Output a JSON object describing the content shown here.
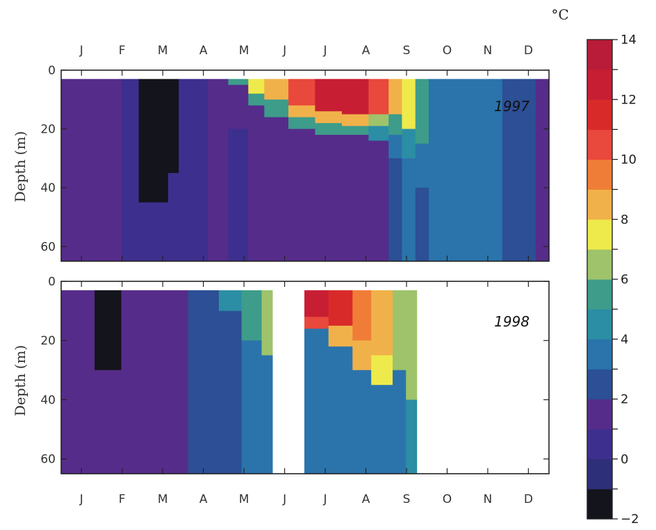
{
  "chart_data": {
    "type": "heatmap",
    "months": [
      "J",
      "F",
      "M",
      "A",
      "M",
      "J",
      "J",
      "A",
      "S",
      "O",
      "N",
      "D"
    ],
    "ylabel": "Depth (m)",
    "y_ticks": [
      0,
      20,
      40,
      60
    ],
    "depth_range": [
      0,
      65
    ],
    "colorbar": {
      "unit": "°C",
      "range": [
        -2,
        14
      ],
      "tick_labels": [
        -2,
        0,
        2,
        4,
        6,
        8,
        10,
        12,
        14
      ],
      "colors": [
        "#14141c",
        "#2d2f78",
        "#3d2f8e",
        "#562c8a",
        "#2c4f95",
        "#2a74ab",
        "#2b8ea5",
        "#3d9c8a",
        "#9ec36b",
        "#eeea4c",
        "#f1b14a",
        "#ef7d37",
        "#e9483c",
        "#d92a2a",
        "#c81e34",
        "#b81c38"
      ]
    },
    "panels": [
      {
        "year_label": "1997",
        "columns": [
          {
            "day_start": 0,
            "day_end": 4,
            "profile": [
              [
                0,
                65,
                1.3
              ]
            ]
          },
          {
            "day_start": 4,
            "day_end": 8,
            "profile": [
              [
                0,
                65,
                1.1
              ]
            ]
          },
          {
            "day_start": 8,
            "day_end": 30,
            "profile": [
              [
                0,
                65,
                1.2
              ]
            ]
          },
          {
            "day_start": 30,
            "day_end": 45,
            "profile": [
              [
                0,
                65,
                1.0
              ]
            ]
          },
          {
            "day_start": 45,
            "day_end": 58,
            "profile": [
              [
                0,
                65,
                0.6
              ]
            ]
          },
          {
            "day_start": 58,
            "day_end": 80,
            "profile": [
              [
                0,
                45,
                -1.3
              ],
              [
                45,
                65,
                0.7
              ]
            ]
          },
          {
            "day_start": 80,
            "day_end": 88,
            "profile": [
              [
                0,
                35,
                -1.1
              ],
              [
                35,
                65,
                0.9
              ]
            ]
          },
          {
            "day_start": 88,
            "day_end": 92,
            "profile": [
              [
                0,
                65,
                0.7
              ]
            ]
          },
          {
            "day_start": 92,
            "day_end": 110,
            "profile": [
              [
                0,
                65,
                0.6
              ]
            ]
          },
          {
            "day_start": 110,
            "day_end": 125,
            "profile": [
              [
                0,
                65,
                1.2
              ]
            ]
          },
          {
            "day_start": 125,
            "day_end": 140,
            "profile": [
              [
                0,
                5,
                5.0
              ],
              [
                5,
                20,
                1.3
              ],
              [
                20,
                65,
                0.9
              ]
            ]
          },
          {
            "day_start": 140,
            "day_end": 152,
            "profile": [
              [
                0,
                8,
                7.0
              ],
              [
                8,
                12,
                5.0
              ],
              [
                12,
                24,
                1.3
              ],
              [
                24,
                65,
                1.0
              ]
            ]
          },
          {
            "day_start": 152,
            "day_end": 170,
            "profile": [
              [
                0,
                10,
                8.3
              ],
              [
                10,
                16,
                5.5
              ],
              [
                16,
                30,
                1.6
              ],
              [
                30,
                65,
                1.0
              ]
            ]
          },
          {
            "day_start": 170,
            "day_end": 190,
            "profile": [
              [
                0,
                12,
                10.0
              ],
              [
                12,
                16,
                8.2
              ],
              [
                16,
                20,
                5.0
              ],
              [
                20,
                65,
                1.3
              ]
            ]
          },
          {
            "day_start": 190,
            "day_end": 210,
            "profile": [
              [
                0,
                14,
                12.0
              ],
              [
                14,
                18,
                8.5
              ],
              [
                18,
                22,
                5.0
              ],
              [
                22,
                65,
                1.2
              ]
            ]
          },
          {
            "day_start": 210,
            "day_end": 230,
            "profile": [
              [
                0,
                15,
                12.8
              ],
              [
                15,
                19,
                8.5
              ],
              [
                19,
                22,
                5.0
              ],
              [
                22,
                65,
                1.3
              ]
            ]
          },
          {
            "day_start": 230,
            "day_end": 245,
            "profile": [
              [
                0,
                15,
                10.0
              ],
              [
                15,
                19,
                6.5
              ],
              [
                19,
                24,
                4.0
              ],
              [
                24,
                65,
                1.5
              ]
            ]
          },
          {
            "day_start": 245,
            "day_end": 255,
            "profile": [
              [
                0,
                15,
                8.5
              ],
              [
                15,
                22,
                5.0
              ],
              [
                22,
                30,
                3.5
              ],
              [
                30,
                65,
                2.5
              ]
            ]
          },
          {
            "day_start": 255,
            "day_end": 265,
            "profile": [
              [
                0,
                20,
                7.2
              ],
              [
                20,
                30,
                4.0
              ],
              [
                30,
                65,
                3.0
              ]
            ]
          },
          {
            "day_start": 265,
            "day_end": 275,
            "profile": [
              [
                0,
                25,
                5.5
              ],
              [
                25,
                40,
                3.8
              ],
              [
                40,
                65,
                2.8
              ]
            ]
          },
          {
            "day_start": 275,
            "day_end": 300,
            "profile": [
              [
                0,
                65,
                3.6
              ]
            ]
          },
          {
            "day_start": 300,
            "day_end": 330,
            "profile": [
              [
                0,
                65,
                3.4
              ]
            ]
          },
          {
            "day_start": 330,
            "day_end": 345,
            "profile": [
              [
                0,
                65,
                2.6
              ]
            ]
          },
          {
            "day_start": 345,
            "day_end": 355,
            "profile": [
              [
                0,
                65,
                2.0
              ]
            ]
          },
          {
            "day_start": 355,
            "day_end": 365,
            "profile": [
              [
                0,
                65,
                1.4
              ]
            ]
          }
        ]
      },
      {
        "year_label": "1998",
        "columns": [
          {
            "day_start": 0,
            "day_end": 12,
            "profile": [
              [
                0,
                65,
                1.4
              ]
            ]
          },
          {
            "day_start": 12,
            "day_end": 25,
            "profile": [
              [
                0,
                65,
                1.1
              ]
            ]
          },
          {
            "day_start": 25,
            "day_end": 45,
            "profile": [
              [
                0,
                30,
                -1.3
              ],
              [
                30,
                65,
                1.0
              ]
            ]
          },
          {
            "day_start": 45,
            "day_end": 60,
            "profile": [
              [
                0,
                65,
                1.2
              ]
            ]
          },
          {
            "day_start": 60,
            "day_end": 95,
            "profile": [
              [
                0,
                65,
                1.5
              ]
            ]
          },
          {
            "day_start": 95,
            "day_end": 118,
            "profile": [
              [
                0,
                65,
                2.6
              ]
            ]
          },
          {
            "day_start": 118,
            "day_end": 135,
            "profile": [
              [
                0,
                10,
                4.2
              ],
              [
                10,
                65,
                2.8
              ]
            ]
          },
          {
            "day_start": 135,
            "day_end": 150,
            "profile": [
              [
                0,
                20,
                5.0
              ],
              [
                20,
                65,
                3.2
              ]
            ]
          },
          {
            "day_start": 150,
            "day_end": 158,
            "profile": [
              [
                0,
                25,
                6.5
              ],
              [
                25,
                65,
                3.2
              ]
            ]
          },
          {
            "day_start": 182,
            "day_end": 200,
            "profile": [
              [
                0,
                12,
                12.2
              ],
              [
                12,
                16,
                10.0
              ],
              [
                16,
                65,
                3.8
              ]
            ]
          },
          {
            "day_start": 200,
            "day_end": 218,
            "profile": [
              [
                0,
                15,
                11.5
              ],
              [
                15,
                22,
                8.5
              ],
              [
                22,
                65,
                3.8
              ]
            ]
          },
          {
            "day_start": 218,
            "day_end": 232,
            "profile": [
              [
                0,
                20,
                9.5
              ],
              [
                20,
                30,
                8.2
              ],
              [
                30,
                65,
                3.8
              ]
            ]
          },
          {
            "day_start": 232,
            "day_end": 248,
            "profile": [
              [
                0,
                25,
                8.4
              ],
              [
                25,
                35,
                7.0
              ],
              [
                35,
                65,
                3.8
              ]
            ]
          },
          {
            "day_start": 248,
            "day_end": 258,
            "profile": [
              [
                0,
                30,
                6.8
              ],
              [
                30,
                65,
                3.9
              ]
            ]
          },
          {
            "day_start": 258,
            "day_end": 266,
            "profile": [
              [
                0,
                40,
                6.2
              ],
              [
                40,
                65,
                4.2
              ]
            ]
          }
        ]
      }
    ]
  }
}
